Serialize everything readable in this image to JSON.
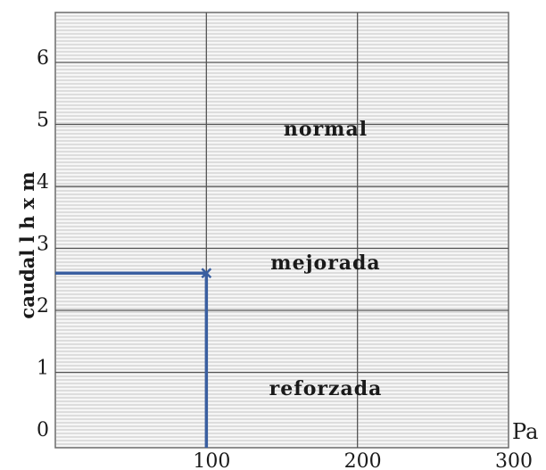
{
  "chart_data": {
    "type": "line",
    "ylabel": "caudal l h x m",
    "x_unit": "Pa",
    "xlim": [
      0,
      300
    ],
    "ylim": [
      0,
      6.5
    ],
    "x_ticks": [
      "100",
      "200",
      "300"
    ],
    "y_ticks": [
      "0",
      "1",
      "2",
      "3",
      "4",
      "5",
      "6"
    ],
    "regions": [
      {
        "label": "normal",
        "y_from": 4,
        "y_to": 6
      },
      {
        "label": "mejorada",
        "y_from": 2,
        "y_to": 4
      },
      {
        "label": "reforzada",
        "y_from": 0,
        "y_to": 2
      }
    ],
    "marker": {
      "x": 100,
      "y": 2.6
    },
    "marker_color": "#3a5fa0",
    "grid": true
  }
}
